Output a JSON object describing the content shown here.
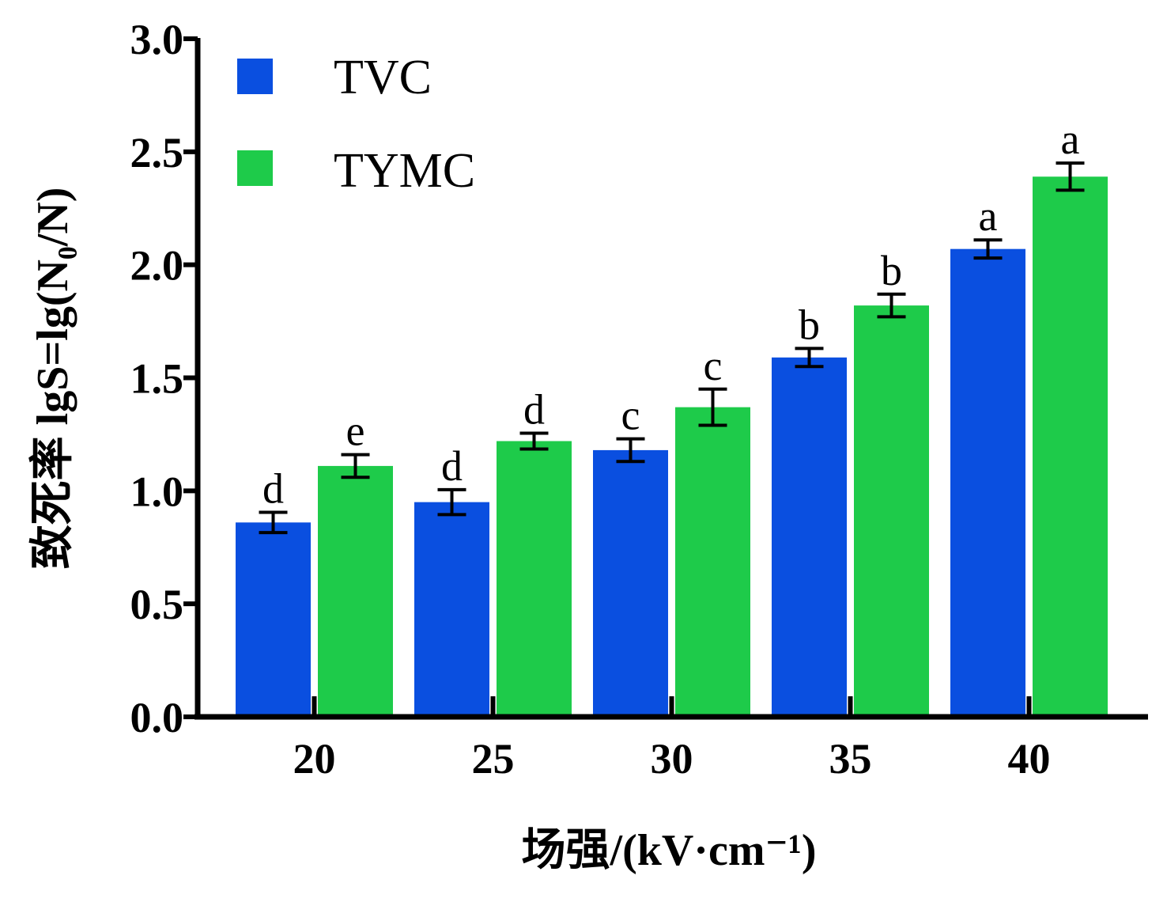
{
  "chart_data": {
    "type": "bar",
    "categories": [
      "20",
      "25",
      "30",
      "35",
      "40"
    ],
    "series": [
      {
        "name": "TVC",
        "color": "#0a4fe0",
        "values": [
          0.86,
          0.95,
          1.18,
          1.59,
          2.07
        ],
        "errors": [
          0.045,
          0.055,
          0.05,
          0.04,
          0.04
        ],
        "letters": [
          "d",
          "d",
          "c",
          "b",
          "a"
        ]
      },
      {
        "name": "TYMC",
        "color": "#1ecb4a",
        "values": [
          1.11,
          1.22,
          1.37,
          1.82,
          2.39
        ],
        "errors": [
          0.05,
          0.035,
          0.08,
          0.05,
          0.06
        ],
        "letters": [
          "e",
          "d",
          "c",
          "b",
          "a"
        ]
      }
    ],
    "y_ticks": [
      "0.0",
      "0.5",
      "1.0",
      "1.5",
      "2.0",
      "2.5",
      "3.0"
    ],
    "ylim": [
      0,
      3.0
    ],
    "ylabel": "致死率 lgS=lg(N₀/N)",
    "xlabel": "场强/(kV·cm⁻¹)",
    "grid": false,
    "legend_position": "top-left"
  }
}
